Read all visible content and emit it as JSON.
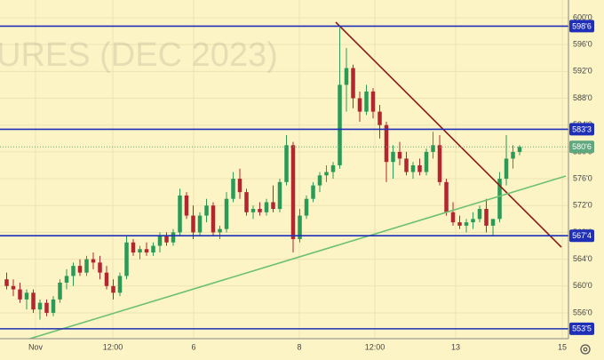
{
  "chart_data": {
    "type": "candlestick",
    "watermark": "URES (DEC 2023)",
    "x": [
      0,
      1,
      2,
      3,
      4,
      5,
      6,
      7,
      8,
      9,
      10,
      11,
      12,
      13,
      14,
      15,
      16,
      17,
      18,
      19,
      20,
      21,
      22,
      23,
      24,
      25,
      26,
      27,
      28,
      29,
      30,
      31,
      32,
      33,
      34,
      35,
      36,
      37,
      38,
      39,
      40,
      41,
      42,
      43,
      44,
      45,
      46,
      47,
      48,
      49,
      50,
      51,
      52,
      53,
      54,
      55,
      56,
      57,
      58,
      59,
      60,
      61,
      62,
      63,
      64,
      65,
      66,
      67,
      68,
      69,
      70,
      71,
      72,
      73,
      74,
      75,
      76,
      77
    ],
    "open": [
      561,
      560,
      559.5,
      558,
      559,
      556.5,
      557.5,
      556,
      558,
      560.5,
      561.5,
      563,
      562,
      564,
      563.5,
      562,
      560,
      559,
      561.5,
      566.5,
      565,
      565.5,
      565,
      566,
      567.5,
      566.5,
      568,
      573.5,
      570.5,
      568,
      570.5,
      572,
      568,
      568.5,
      573,
      576,
      574,
      571,
      571.5,
      571,
      572.5,
      571.5,
      575.5,
      581,
      567,
      570.5,
      573,
      575,
      576.5,
      577,
      578,
      590,
      592.5,
      588,
      586,
      589,
      586,
      584,
      578.5,
      580,
      579,
      577,
      578,
      577,
      580,
      581,
      575.5,
      571,
      569.5,
      569,
      569.5,
      570,
      571.5,
      569,
      570,
      576,
      579,
      580
    ],
    "high": [
      562,
      561,
      560.5,
      559.5,
      559.5,
      558,
      558,
      558.5,
      561,
      562.5,
      563.5,
      564,
      564.5,
      565,
      564.5,
      563,
      561,
      562,
      567.5,
      567,
      566,
      566.5,
      566.5,
      568,
      568,
      568.5,
      574.5,
      574,
      572,
      571,
      573,
      572.5,
      569,
      574,
      577,
      577.5,
      574.5,
      572,
      572.5,
      573,
      575,
      576,
      582.5,
      581.5,
      571.5,
      573.5,
      575.5,
      577,
      578,
      578.5,
      598.5,
      595.5,
      593,
      589,
      590,
      589.5,
      587,
      584.5,
      581,
      581.5,
      580,
      578.5,
      579,
      580.5,
      583,
      582.5,
      576,
      572.5,
      570.5,
      570,
      571,
      572,
      573,
      570,
      577,
      582.5,
      581,
      581
    ],
    "low": [
      559.5,
      558.5,
      557.5,
      556.5,
      556,
      555,
      555.5,
      555.5,
      557.5,
      559.5,
      560,
      561.5,
      561.5,
      562.5,
      561,
      559.5,
      558,
      558.5,
      561,
      564.5,
      564,
      564.5,
      564.5,
      565,
      566,
      566,
      567.5,
      570,
      567,
      567.5,
      569.5,
      567.5,
      567,
      568,
      572.5,
      573,
      570.5,
      570,
      570.5,
      570.5,
      571,
      571,
      575,
      565,
      566.5,
      570,
      572.5,
      574,
      575.5,
      576,
      577.5,
      586,
      586.5,
      584.5,
      585.5,
      585,
      582,
      575.5,
      576,
      578,
      576.5,
      576,
      576.5,
      576.5,
      579,
      575,
      570.5,
      569,
      568.5,
      568,
      568.5,
      569.5,
      568,
      567.5,
      569.5,
      575,
      577.5,
      579.5
    ],
    "close": [
      560,
      559.5,
      558,
      559,
      556.5,
      557.5,
      556,
      558,
      560.5,
      561.5,
      563,
      562,
      564,
      563.5,
      562,
      560,
      559,
      561.5,
      566.5,
      565,
      565.5,
      565,
      566,
      567.5,
      566.5,
      568,
      573.5,
      570.5,
      568,
      570.5,
      572,
      568,
      568.5,
      573,
      576,
      574,
      571,
      571.5,
      571,
      572.5,
      571.5,
      575.5,
      581,
      567,
      570.5,
      573,
      575,
      576.5,
      577,
      578,
      590,
      592.5,
      588,
      586,
      589,
      586,
      584,
      578.5,
      580,
      579,
      577,
      578,
      577,
      580,
      581,
      575.5,
      571,
      569.5,
      569,
      569.5,
      570,
      571.5,
      569,
      570,
      576,
      579,
      580,
      580.75
    ],
    "up_color": "#2b9a57",
    "down_color": "#b3262f",
    "xlim": [
      -1,
      84.33
    ],
    "ylim": [
      552.15,
      602.65
    ],
    "xticks": [
      {
        "value": 4.33,
        "label": "Nov"
      },
      {
        "value": 15.93,
        "label": "12:00"
      },
      {
        "value": 28.07,
        "label": "6"
      },
      {
        "value": 43.93,
        "label": "8"
      },
      {
        "value": 55.27,
        "label": "12:00"
      },
      {
        "value": 67.4,
        "label": "13"
      },
      {
        "value": 83.4,
        "label": "15"
      }
    ],
    "yticks": [
      {
        "value": 556,
        "label": "556'0"
      },
      {
        "value": 560,
        "label": "560'0"
      },
      {
        "value": 564,
        "label": "564'0"
      },
      {
        "value": 568,
        "label": "568'0"
      },
      {
        "value": 572,
        "label": "572'0"
      },
      {
        "value": 576,
        "label": "576'0"
      },
      {
        "value": 580,
        "label": "580'0"
      },
      {
        "value": 584,
        "label": "584'0"
      },
      {
        "value": 588,
        "label": "588'0"
      },
      {
        "value": 592,
        "label": "592'0"
      },
      {
        "value": 596,
        "label": "596'0"
      },
      {
        "value": 600,
        "label": "600'0"
      }
    ],
    "grid": true,
    "levels": [
      {
        "value": 598.75,
        "label": "598'6"
      },
      {
        "value": 583.375,
        "label": "583'3"
      },
      {
        "value": 567.5,
        "label": "567'4"
      },
      {
        "value": 553.625,
        "label": "553'5"
      }
    ],
    "level_color": "#1f2fb8",
    "last_price": {
      "value": 580.75,
      "label": "580'6",
      "color": "#5fa77c"
    },
    "trendlines": [
      {
        "color": "#8b1a1a",
        "x": [
          49.4,
          83.27
        ],
        "y": [
          599.34,
          565.8
        ]
      },
      {
        "color": "#6cc070",
        "x": [
          3.0,
          83.93
        ],
        "y": [
          552.0,
          576.4
        ]
      }
    ]
  }
}
